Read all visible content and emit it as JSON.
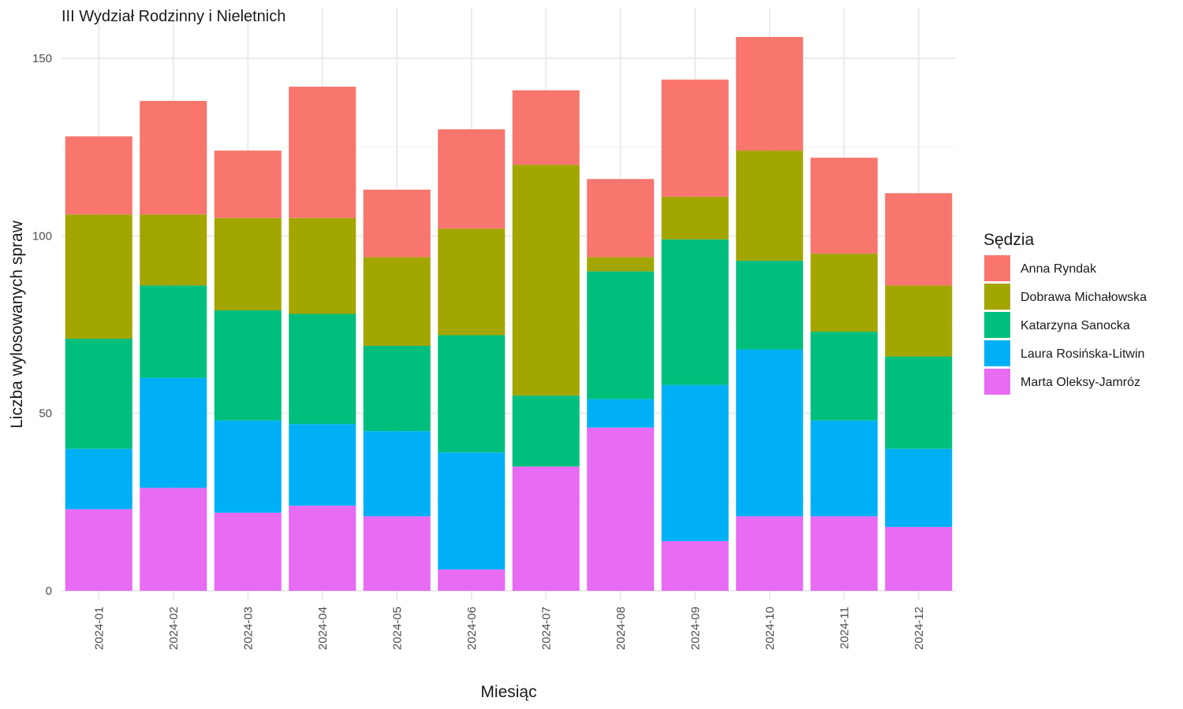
{
  "chart_data": {
    "type": "bar",
    "stacked": true,
    "title": "III Wydział Rodzinny i Nieletnich",
    "xlabel": "Miesiąc",
    "ylabel": "Liczba wylosowanych spraw",
    "ylim": [
      0,
      160
    ],
    "yticks": [
      0,
      50,
      100,
      150
    ],
    "grid": true,
    "legend_title": "Sędzia",
    "legend_position": "right",
    "categories": [
      "2024-01",
      "2024-02",
      "2024-03",
      "2024-04",
      "2024-05",
      "2024-06",
      "2024-07",
      "2024-08",
      "2024-09",
      "2024-10",
      "2024-11",
      "2024-12"
    ],
    "series": [
      {
        "name": "Marta Oleksy-Jamróz",
        "color": "#E76BF3",
        "values": [
          23,
          29,
          22,
          24,
          21,
          6,
          35,
          46,
          14,
          21,
          21,
          18
        ]
      },
      {
        "name": "Laura Rosińska-Litwin",
        "color": "#00B0F6",
        "values": [
          17,
          31,
          26,
          23,
          24,
          33,
          0,
          8,
          44,
          47,
          27,
          22
        ]
      },
      {
        "name": "Katarzyna Sanocka",
        "color": "#00BF7D",
        "values": [
          31,
          26,
          31,
          31,
          24,
          33,
          20,
          36,
          41,
          25,
          25,
          26
        ]
      },
      {
        "name": "Dobrawa Michałowska",
        "color": "#A3A500",
        "values": [
          35,
          20,
          26,
          27,
          25,
          30,
          65,
          4,
          12,
          31,
          22,
          20
        ]
      },
      {
        "name": "Anna Ryndak",
        "color": "#F8766D",
        "values": [
          22,
          32,
          19,
          37,
          19,
          28,
          21,
          22,
          33,
          32,
          27,
          26
        ]
      }
    ],
    "legend_order": [
      "Anna Ryndak",
      "Dobrawa Michałowska",
      "Katarzyna Sanocka",
      "Laura Rosińska-Litwin",
      "Marta Oleksy-Jamróz"
    ]
  }
}
